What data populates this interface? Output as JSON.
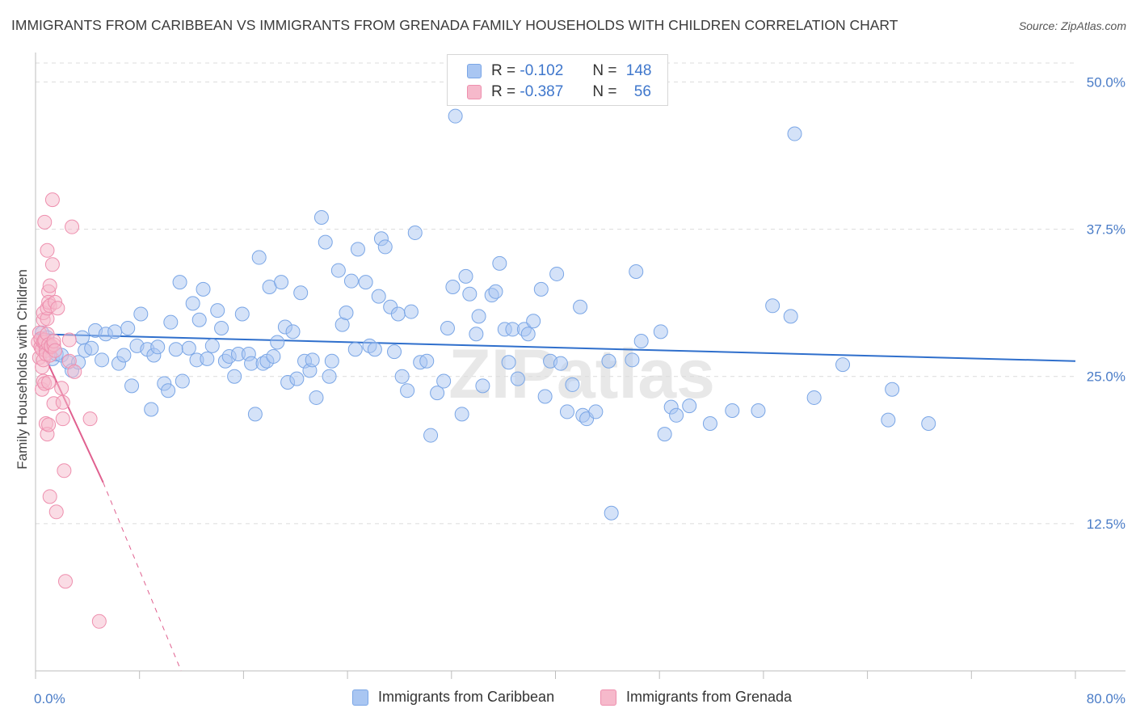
{
  "title": "IMMIGRANTS FROM CARIBBEAN VS IMMIGRANTS FROM GRENADA FAMILY HOUSEHOLDS WITH CHILDREN CORRELATION CHART",
  "source": "Source: ZipAtlas.com",
  "watermark": "ZIPatlas",
  "legend_stats": [
    {
      "r_label": "R =",
      "r_value": "-0.102",
      "n_label": "N =",
      "n_value": "148",
      "color": "#a9c6f2"
    },
    {
      "r_label": "R =",
      "r_value": "-0.387",
      "n_label": "N =",
      "n_value": "56",
      "color": "#f6b9cb"
    }
  ],
  "colors": {
    "blue_fill": "#a9c6f2",
    "blue_stroke": "#7aa6e6",
    "blue_line": "#2f6fcc",
    "pink_fill": "#f6b9cb",
    "pink_stroke": "#ee8fae",
    "pink_line": "#e0608f",
    "tick_text": "#4a7cc7",
    "grid": "#dcdcdc"
  },
  "chart_data": {
    "type": "scatter",
    "xlabel": "",
    "ylabel": "Family Households with Children",
    "xlim": [
      0,
      80
    ],
    "ylim": [
      0,
      52.5
    ],
    "x_tick_labels": [
      "0.0%",
      "80.0%"
    ],
    "y_ticks": [
      12.5,
      25.0,
      37.5,
      50.0
    ],
    "y_tick_labels": [
      "12.5%",
      "25.0%",
      "37.5%",
      "50.0%"
    ],
    "grid": "horizontal dashed",
    "legend": "top-center",
    "series": [
      {
        "name": "Immigrants from Caribbean",
        "trend": {
          "x0": 0,
          "y0": 28.6,
          "x1": 80,
          "y1": 26.3
        },
        "points": [
          [
            0.5,
            28.7
          ],
          [
            0.9,
            28.3
          ],
          [
            1.1,
            27.5
          ],
          [
            1.3,
            26.5
          ],
          [
            1.6,
            26.9
          ],
          [
            2.0,
            26.8
          ],
          [
            2.5,
            26.2
          ],
          [
            2.8,
            25.5
          ],
          [
            3.3,
            26.2
          ],
          [
            3.6,
            28.3
          ],
          [
            3.8,
            27.2
          ],
          [
            4.3,
            27.4
          ],
          [
            4.6,
            28.9
          ],
          [
            5.1,
            26.4
          ],
          [
            5.4,
            28.6
          ],
          [
            6.1,
            28.8
          ],
          [
            6.4,
            26.1
          ],
          [
            6.8,
            26.8
          ],
          [
            7.1,
            29.1
          ],
          [
            7.4,
            24.2
          ],
          [
            7.8,
            27.6
          ],
          [
            8.1,
            30.3
          ],
          [
            8.6,
            27.3
          ],
          [
            8.9,
            22.2
          ],
          [
            9.1,
            26.8
          ],
          [
            9.4,
            27.5
          ],
          [
            9.9,
            24.4
          ],
          [
            10.2,
            23.8
          ],
          [
            10.4,
            29.6
          ],
          [
            10.8,
            27.3
          ],
          [
            11.1,
            33.0
          ],
          [
            11.3,
            24.6
          ],
          [
            11.8,
            27.4
          ],
          [
            12.1,
            31.2
          ],
          [
            12.4,
            26.4
          ],
          [
            12.6,
            29.8
          ],
          [
            12.9,
            32.4
          ],
          [
            13.2,
            26.5
          ],
          [
            13.6,
            27.6
          ],
          [
            14.0,
            30.6
          ],
          [
            14.3,
            29.1
          ],
          [
            14.6,
            26.3
          ],
          [
            14.9,
            26.7
          ],
          [
            15.3,
            25.0
          ],
          [
            15.6,
            26.9
          ],
          [
            15.9,
            30.3
          ],
          [
            16.4,
            26.9
          ],
          [
            16.6,
            26.1
          ],
          [
            16.9,
            21.8
          ],
          [
            17.2,
            35.1
          ],
          [
            17.5,
            26.1
          ],
          [
            17.8,
            26.3
          ],
          [
            18.0,
            32.6
          ],
          [
            18.3,
            26.7
          ],
          [
            18.6,
            27.9
          ],
          [
            18.9,
            33.0
          ],
          [
            19.2,
            29.2
          ],
          [
            19.4,
            24.5
          ],
          [
            19.8,
            28.8
          ],
          [
            20.1,
            24.8
          ],
          [
            20.4,
            32.1
          ],
          [
            20.7,
            26.3
          ],
          [
            21.1,
            25.5
          ],
          [
            21.3,
            26.4
          ],
          [
            21.6,
            23.2
          ],
          [
            22.0,
            38.5
          ],
          [
            22.3,
            36.4
          ],
          [
            22.6,
            25.0
          ],
          [
            22.8,
            26.3
          ],
          [
            23.3,
            34.0
          ],
          [
            23.6,
            29.4
          ],
          [
            23.9,
            30.4
          ],
          [
            24.3,
            33.1
          ],
          [
            24.6,
            27.3
          ],
          [
            24.8,
            35.8
          ],
          [
            25.4,
            33.0
          ],
          [
            25.7,
            27.6
          ],
          [
            26.1,
            27.3
          ],
          [
            26.4,
            31.8
          ],
          [
            26.6,
            36.7
          ],
          [
            26.9,
            36.0
          ],
          [
            27.3,
            30.9
          ],
          [
            27.6,
            27.1
          ],
          [
            27.9,
            30.3
          ],
          [
            28.2,
            25.0
          ],
          [
            28.6,
            23.8
          ],
          [
            28.9,
            30.5
          ],
          [
            29.2,
            37.2
          ],
          [
            29.6,
            26.2
          ],
          [
            30.1,
            26.3
          ],
          [
            30.4,
            20.0
          ],
          [
            30.9,
            23.6
          ],
          [
            31.4,
            24.6
          ],
          [
            31.7,
            29.1
          ],
          [
            32.1,
            32.6
          ],
          [
            32.3,
            47.1
          ],
          [
            32.8,
            21.8
          ],
          [
            33.1,
            33.5
          ],
          [
            33.4,
            32.0
          ],
          [
            33.9,
            28.6
          ],
          [
            34.1,
            30.1
          ],
          [
            34.4,
            24.2
          ],
          [
            35.1,
            31.9
          ],
          [
            35.4,
            32.2
          ],
          [
            35.7,
            34.6
          ],
          [
            36.1,
            29.0
          ],
          [
            36.4,
            26.2
          ],
          [
            36.7,
            29.0
          ],
          [
            37.1,
            24.8
          ],
          [
            37.6,
            29.0
          ],
          [
            37.9,
            28.6
          ],
          [
            38.3,
            29.7
          ],
          [
            38.9,
            32.4
          ],
          [
            39.2,
            23.3
          ],
          [
            39.6,
            26.3
          ],
          [
            40.1,
            33.7
          ],
          [
            40.4,
            26.1
          ],
          [
            40.9,
            22.0
          ],
          [
            41.3,
            24.3
          ],
          [
            41.9,
            30.9
          ],
          [
            42.1,
            21.7
          ],
          [
            42.4,
            21.4
          ],
          [
            43.1,
            22.0
          ],
          [
            44.1,
            26.3
          ],
          [
            44.3,
            13.4
          ],
          [
            45.9,
            26.4
          ],
          [
            46.2,
            33.9
          ],
          [
            46.6,
            28.0
          ],
          [
            48.1,
            28.8
          ],
          [
            48.4,
            20.1
          ],
          [
            48.9,
            22.4
          ],
          [
            49.3,
            21.7
          ],
          [
            50.3,
            22.5
          ],
          [
            51.9,
            21.0
          ],
          [
            53.6,
            22.1
          ],
          [
            55.6,
            22.1
          ],
          [
            56.7,
            31.0
          ],
          [
            58.1,
            30.1
          ],
          [
            58.4,
            45.6
          ],
          [
            59.9,
            23.2
          ],
          [
            62.1,
            26.0
          ],
          [
            65.6,
            21.3
          ],
          [
            65.9,
            23.9
          ],
          [
            68.7,
            21.0
          ]
        ]
      },
      {
        "name": "Immigrants from Grenada",
        "trend": {
          "x0": 0,
          "y0": 28.4,
          "x1": 5.2,
          "y1": 16.0,
          "dashed_to_x": 11.2,
          "dashed_to_y": 0
        },
        "points": [
          [
            0.2,
            27.9
          ],
          [
            0.3,
            26.6
          ],
          [
            0.3,
            28.7
          ],
          [
            0.4,
            27.5
          ],
          [
            0.4,
            28.2
          ],
          [
            0.5,
            27.3
          ],
          [
            0.5,
            25.8
          ],
          [
            0.5,
            23.9
          ],
          [
            0.6,
            24.6
          ],
          [
            0.6,
            26.4
          ],
          [
            0.6,
            27.9
          ],
          [
            0.6,
            29.8
          ],
          [
            0.6,
            30.4
          ],
          [
            0.7,
            38.1
          ],
          [
            0.7,
            27.9
          ],
          [
            0.7,
            24.4
          ],
          [
            0.7,
            28.1
          ],
          [
            0.8,
            27.2
          ],
          [
            0.8,
            26.9
          ],
          [
            0.8,
            21.0
          ],
          [
            0.9,
            28.6
          ],
          [
            0.9,
            29.9
          ],
          [
            0.9,
            30.8
          ],
          [
            0.9,
            35.7
          ],
          [
            0.9,
            20.1
          ],
          [
            1.0,
            24.5
          ],
          [
            1.0,
            32.2
          ],
          [
            1.0,
            27.7
          ],
          [
            1.0,
            20.9
          ],
          [
            1.0,
            31.3
          ],
          [
            1.1,
            31.0
          ],
          [
            1.1,
            14.8
          ],
          [
            1.1,
            26.8
          ],
          [
            1.1,
            32.7
          ],
          [
            1.2,
            27.5
          ],
          [
            1.2,
            27.6
          ],
          [
            1.3,
            40.0
          ],
          [
            1.3,
            34.5
          ],
          [
            1.4,
            27.7
          ],
          [
            1.4,
            28.0
          ],
          [
            1.4,
            22.7
          ],
          [
            1.5,
            31.3
          ],
          [
            1.5,
            27.2
          ],
          [
            1.6,
            13.5
          ],
          [
            1.7,
            30.8
          ],
          [
            2.0,
            24.0
          ],
          [
            2.1,
            21.4
          ],
          [
            2.1,
            22.8
          ],
          [
            2.2,
            17.0
          ],
          [
            2.3,
            7.6
          ],
          [
            2.6,
            28.1
          ],
          [
            2.6,
            26.3
          ],
          [
            2.8,
            37.7
          ],
          [
            3.0,
            25.4
          ],
          [
            4.2,
            21.4
          ],
          [
            4.9,
            4.2
          ]
        ]
      }
    ]
  },
  "x_label_left": "0.0%",
  "x_label_right": "80.0%"
}
